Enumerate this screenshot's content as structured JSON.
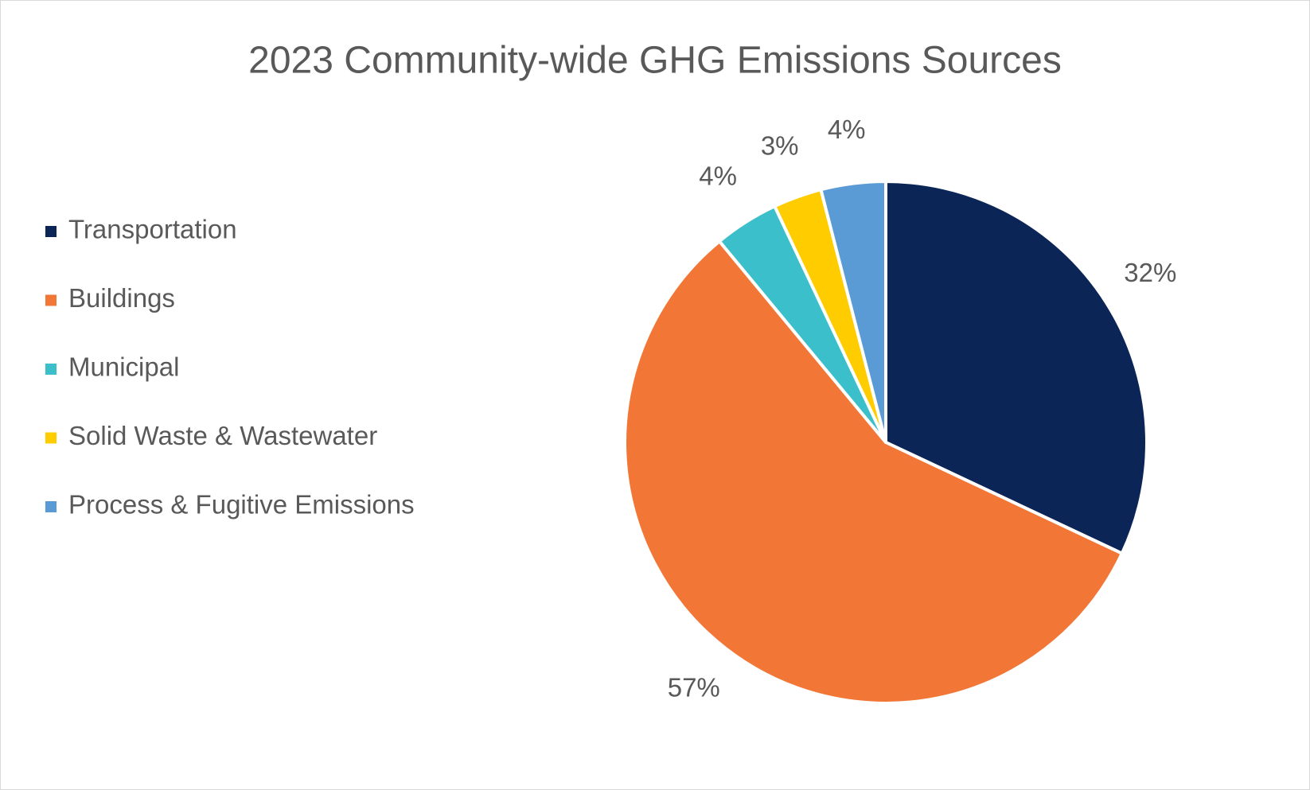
{
  "chart_data": {
    "type": "pie",
    "title": "2023 Community-wide GHG Emissions Sources",
    "categories": [
      "Transportation",
      "Buildings",
      "Municipal",
      "Solid Waste & Wastewater",
      "Process & Fugitive Emissions"
    ],
    "values": [
      32,
      57,
      4,
      3,
      4
    ],
    "value_labels": [
      "32%",
      "57%",
      "4%",
      "3%",
      "4%"
    ],
    "colors": [
      "#0c2557",
      "#f27636",
      "#3bbfcb",
      "#ffcc00",
      "#5b9bd5"
    ],
    "legend": "left"
  }
}
